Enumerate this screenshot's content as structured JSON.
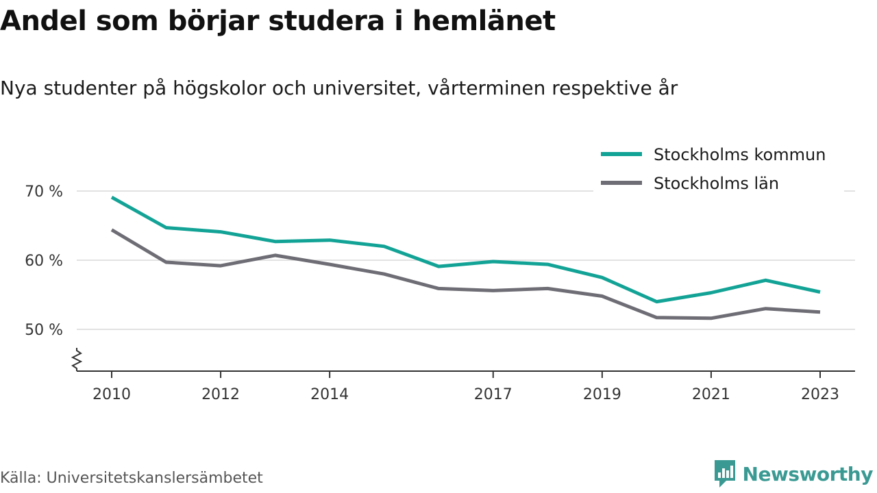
{
  "chart_data": {
    "type": "line",
    "title": "Andel som börjar studera i hemlänet",
    "subtitle": "Nya studenter på högskolor och universitet, vårterminen respektive år",
    "x": [
      2010,
      2011,
      2012,
      2013,
      2014,
      2015,
      2016,
      2017,
      2018,
      2019,
      2020,
      2021,
      2022,
      2023
    ],
    "x_ticks": [
      2010,
      2012,
      2014,
      2017,
      2019,
      2021,
      2023
    ],
    "y_ticks": [
      50,
      60,
      70
    ],
    "y_tick_labels": [
      "50 %",
      "60 %",
      "70 %"
    ],
    "ylim": [
      44,
      72
    ],
    "axis_break": true,
    "grid": true,
    "legend_position": "top-right",
    "series": [
      {
        "name": "Stockholms kommun",
        "color": "#13a396",
        "values": [
          69.1,
          64.7,
          64.1,
          62.7,
          62.9,
          62.0,
          59.1,
          59.8,
          59.4,
          57.5,
          54.0,
          55.3,
          57.1,
          55.4
        ]
      },
      {
        "name": "Stockholms län",
        "color": "#6e6d75",
        "values": [
          64.4,
          59.7,
          59.2,
          60.7,
          59.4,
          58.0,
          55.9,
          55.6,
          55.9,
          54.8,
          51.7,
          51.6,
          53.0,
          52.5
        ]
      }
    ],
    "source": "Källa: Universitetskanslersämbetet"
  },
  "branding": {
    "name": "Newsworthy",
    "icon": "newsworthy-logo-icon",
    "color": "#3a9a93"
  }
}
